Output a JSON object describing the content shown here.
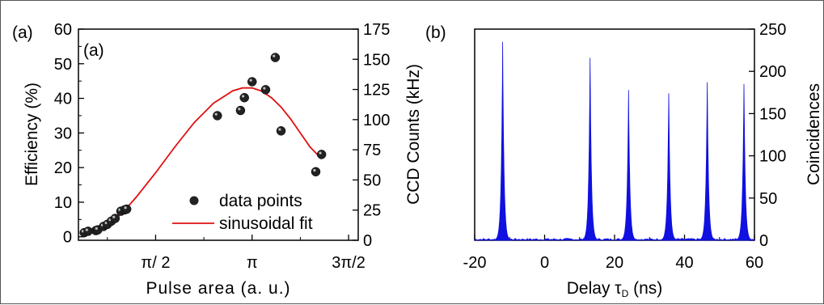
{
  "panel_a": {
    "outer_label": "(a)",
    "inner_label": "(a)",
    "xlabel": "Pulse area (a. u.)",
    "ylabel_left": "Efficiency (%)",
    "ylabel_right": "CCD Counts (kHz)",
    "x_ticks": [
      "π/ 2",
      "π",
      "3π/2"
    ],
    "y_left_ticks": [
      "0",
      "10",
      "20",
      "30",
      "40",
      "50",
      "60"
    ],
    "y_right_ticks": [
      "0",
      "25",
      "50",
      "75",
      "100",
      "125",
      "150",
      "175"
    ],
    "legend": {
      "points_label": "data points",
      "fit_label": "sinusoidal fit"
    }
  },
  "panel_b": {
    "label": "(b)",
    "xlabel": "Delay τ",
    "xlabel_sub": "D",
    "xlabel_unit": " (ns)",
    "ylabel_right": "Coincidences",
    "x_ticks": [
      "-20",
      "0",
      "20",
      "40",
      "60"
    ],
    "y_ticks": [
      "0",
      "50",
      "100",
      "150",
      "200",
      "250"
    ]
  },
  "chart_data": [
    {
      "type": "scatter",
      "xlabel": "Pulse area (a. u.)",
      "ylabel": "Efficiency (%)",
      "ylabel_right": "CCD Counts (kHz)",
      "xlim": [
        0.1,
        1.55
      ],
      "ylim": [
        -1,
        60
      ],
      "ylim_right": [
        0,
        175
      ],
      "x_unit": "π",
      "series": [
        {
          "name": "data points",
          "x": [
            0.13,
            0.15,
            0.19,
            0.2,
            0.23,
            0.25,
            0.27,
            0.29,
            0.32,
            0.34,
            0.35
          ],
          "y": [
            1.2,
            1.6,
            1.8,
            2.0,
            3.0,
            3.6,
            4.5,
            5.3,
            7.4,
            7.8,
            8.0
          ]
        },
        {
          "name": "data points",
          "x": [
            0.82,
            0.94,
            0.96,
            1.0,
            1.07,
            1.12,
            1.15,
            1.33,
            1.36
          ],
          "y": [
            35.0,
            36.5,
            40.2,
            44.8,
            42.5,
            51.8,
            30.6,
            18.8,
            23.8
          ]
        }
      ],
      "fit": {
        "name": "sinusoidal fit",
        "x": [
          0.12,
          0.15,
          0.2,
          0.25,
          0.3,
          0.35,
          0.4,
          0.5,
          0.6,
          0.7,
          0.8,
          0.9,
          0.95,
          1.0,
          1.05,
          1.1,
          1.15,
          1.2,
          1.25,
          1.3,
          1.36
        ],
        "y": [
          0.8,
          1.1,
          2.0,
          3.5,
          5.5,
          8.3,
          11.5,
          18.5,
          26.0,
          33.0,
          38.6,
          42.2,
          43.0,
          43.0,
          42.1,
          40.2,
          37.5,
          34.0,
          30.0,
          26.0,
          22.5
        ]
      }
    },
    {
      "type": "area",
      "xlabel": "Delay τD (ns)",
      "ylabel": "Coincidences",
      "xlim": [
        -20,
        60
      ],
      "ylim": [
        0,
        250
      ],
      "peaks": [
        {
          "x": -12.0,
          "y": 235
        },
        {
          "x": 13.0,
          "y": 216
        },
        {
          "x": 24.0,
          "y": 178
        },
        {
          "x": 35.5,
          "y": 174
        },
        {
          "x": 46.5,
          "y": 187
        },
        {
          "x": 57.0,
          "y": 185
        }
      ],
      "background_level": 1.5
    }
  ]
}
